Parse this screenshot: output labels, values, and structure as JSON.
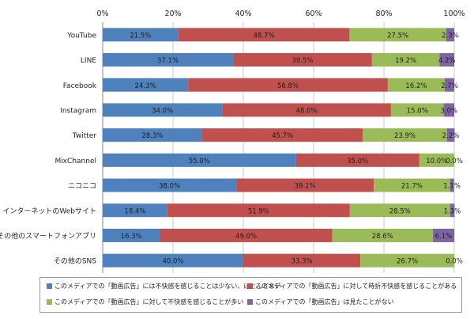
{
  "chart_data": {
    "type": "bar",
    "orientation": "horizontal-stacked-100",
    "x_ticks": [
      "0%",
      "20%",
      "40%",
      "60%",
      "80%",
      "100%"
    ],
    "xlim": [
      0,
      100
    ],
    "grid": true,
    "legend_position": "bottom",
    "categories": [
      "YouTube",
      "LINE",
      "Facebook",
      "Instagram",
      "Twitter",
      "MixChannel",
      "ニコニコ",
      "インターネットのWebサイト",
      "その他のスマートフォンアプリ",
      "その他のSNS"
    ],
    "series": [
      {
        "name": "このメディアでの「動画広告」には不快感を感じることは少ない、ほとんどない",
        "color": "#4f81bd",
        "values": [
          21.5,
          37.1,
          24.3,
          34.0,
          28.3,
          55.0,
          38.0,
          18.4,
          16.3,
          40.0
        ],
        "labels": [
          "21.5%",
          "37.1%",
          "24.3%",
          "34.0%",
          "28.3%",
          "55.0%",
          "38.0%",
          "18.4%",
          "16.3%",
          "40.0%"
        ]
      },
      {
        "name": "このメディアでの「動画広告」に対して時折不快感を感じることがある",
        "color": "#c0504d",
        "values": [
          48.7,
          39.5,
          56.8,
          48.0,
          45.7,
          35.0,
          39.1,
          51.9,
          49.0,
          33.3
        ],
        "labels": [
          "48.7%",
          "39.5%",
          "56.8%",
          "48.0%",
          "45.7%",
          "35.0%",
          "39.1%",
          "51.9%",
          "49.0%",
          "33.3%"
        ]
      },
      {
        "name": "このメディアでの「動画広告」に対して不快感を感じることが多い",
        "color": "#9bbb59",
        "values": [
          27.5,
          19.2,
          16.2,
          15.0,
          23.9,
          10.0,
          21.7,
          28.5,
          28.6,
          26.7
        ],
        "labels": [
          "27.5%",
          "19.2%",
          "16.2%",
          "15.0%",
          "23.9%",
          "10.0%",
          "21.7%",
          "28.5%",
          "28.6%",
          "26.7%"
        ]
      },
      {
        "name": "このメディアでの「動画広告」は見たことがない",
        "color": "#8064a2",
        "values": [
          2.3,
          4.2,
          2.7,
          3.0,
          2.2,
          0.0,
          1.1,
          1.3,
          6.1,
          0.0
        ],
        "labels": [
          "2.3%",
          "4.2%",
          "2.7%",
          "3.0%",
          "2.2%",
          "0.0%",
          "1.1%",
          "1.3%",
          "6.1%",
          "0.0%"
        ]
      }
    ]
  }
}
